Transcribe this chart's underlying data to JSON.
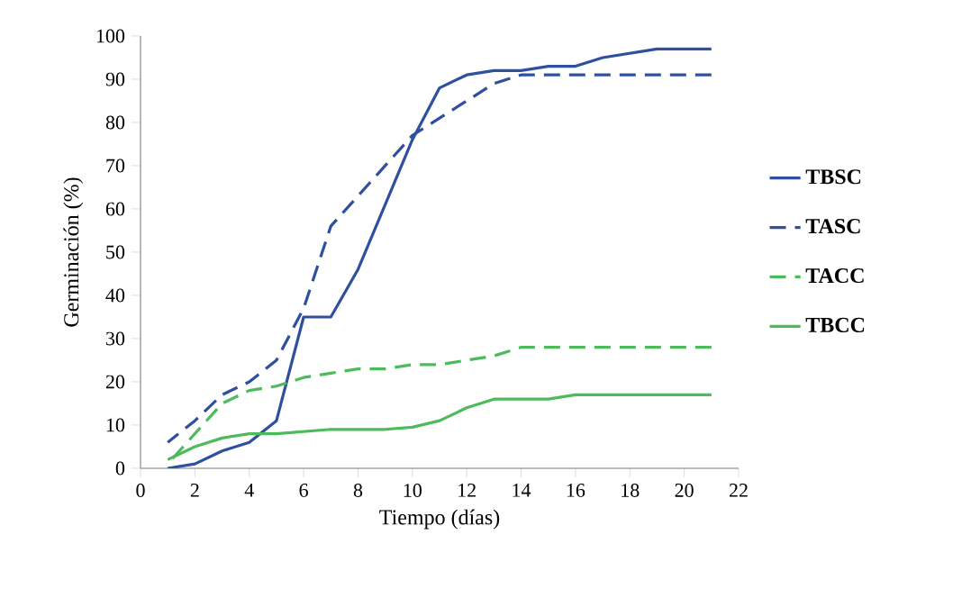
{
  "chart_data": {
    "type": "line",
    "xlabel": "Tiempo (días)",
    "ylabel": "Germinación (%)",
    "x": [
      1,
      2,
      3,
      4,
      5,
      6,
      7,
      8,
      9,
      10,
      11,
      12,
      13,
      14,
      15,
      16,
      17,
      18,
      19,
      20,
      21
    ],
    "series": [
      {
        "name": "TBSC",
        "color": "#2f4f9f",
        "line_style": "solid",
        "values": [
          0,
          1,
          4,
          6,
          11,
          35,
          35,
          46,
          61,
          76,
          88,
          91,
          92,
          92,
          93,
          93,
          95,
          96,
          97,
          97,
          97
        ]
      },
      {
        "name": "TASC",
        "color": "#2f4f9f",
        "line_style": "dashed",
        "values": [
          6,
          11,
          17,
          20,
          25,
          37,
          56,
          63,
          70,
          77,
          81,
          85,
          89,
          91,
          91,
          91,
          91,
          91,
          91,
          91,
          91
        ]
      },
      {
        "name": "TACC",
        "color": "#4cbb5c",
        "line_style": "dashed",
        "values": [
          1,
          8,
          15,
          18,
          19,
          21,
          22,
          23,
          23,
          24,
          24,
          25,
          26,
          28,
          28,
          28,
          28,
          28,
          28,
          28,
          28
        ]
      },
      {
        "name": "TBCC",
        "color": "#4cbb5c",
        "line_style": "solid",
        "values": [
          2,
          5,
          7,
          8,
          8,
          8.5,
          9,
          9,
          9,
          9.5,
          11,
          14,
          16,
          16,
          16,
          17,
          17,
          17,
          17,
          17,
          17
        ]
      }
    ],
    "xlim": [
      0,
      22
    ],
    "xticks": [
      0,
      2,
      4,
      6,
      8,
      10,
      12,
      14,
      16,
      18,
      20,
      22
    ],
    "ylim": [
      0,
      100
    ],
    "yticks": [
      0,
      10,
      20,
      30,
      40,
      50,
      60,
      70,
      80,
      90,
      100
    ],
    "grid": false,
    "legend": "right",
    "marker": "none"
  }
}
